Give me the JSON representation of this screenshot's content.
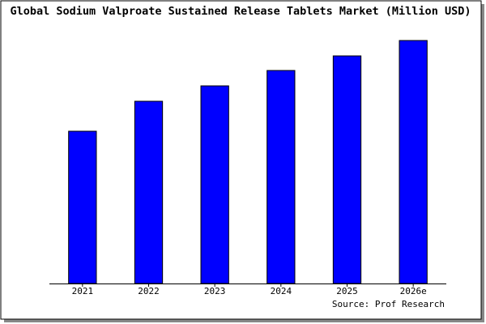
{
  "chart_data": {
    "type": "bar",
    "title": "Global Sodium Valproate Sustained Release Tablets Market (Million USD)",
    "categories": [
      "2021",
      "2022",
      "2023",
      "2024",
      "2025",
      "2026e"
    ],
    "values": [
      188,
      225,
      244,
      263,
      281,
      300
    ],
    "color": "#0000ff",
    "ylim": [
      0,
      300
    ],
    "source": "Source: Prof Research"
  }
}
